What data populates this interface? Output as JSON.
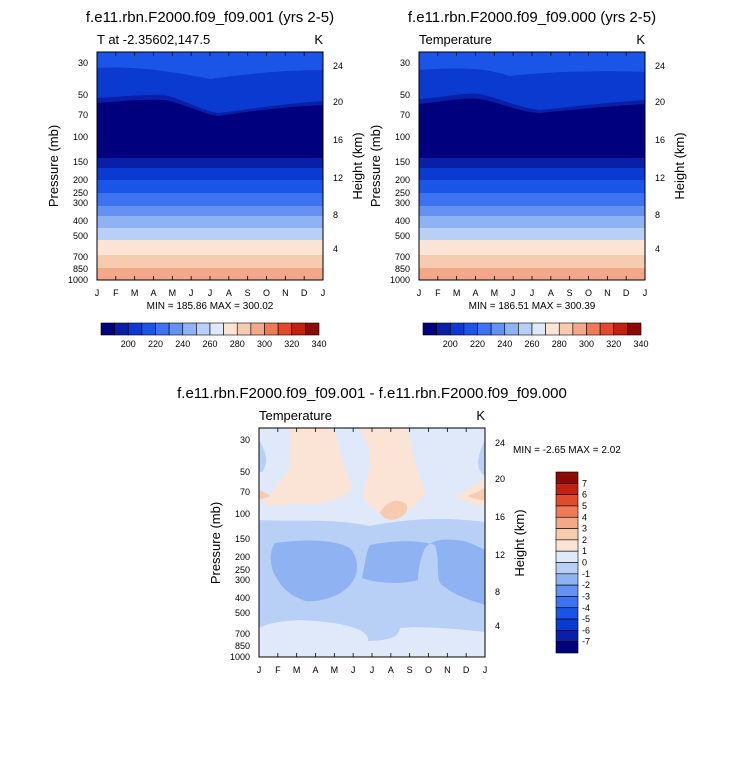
{
  "chart_data": [
    {
      "type": "heatmap",
      "title": "f.e11.rbn.F2000.f09_f09.001 (yrs 2-5)",
      "subtitle_left": "T at -2.35602,147.5",
      "subtitle_right": "K",
      "ylabel": "Pressure (mb)",
      "y2label": "Height (km)",
      "x_ticks": [
        "J",
        "F",
        "M",
        "A",
        "M",
        "J",
        "J",
        "A",
        "S",
        "O",
        "N",
        "D",
        "J"
      ],
      "y_ticks": [
        "30",
        "50",
        "70",
        "100",
        "150",
        "200",
        "250",
        "300",
        "400",
        "500",
        "700",
        "850",
        "1000"
      ],
      "y2_ticks": [
        "24",
        "20",
        "16",
        "12",
        "8",
        "4"
      ],
      "ylim": [
        1000,
        20
      ],
      "stats": "MIN = 185.86 MAX = 300.02",
      "colorbar_labels": [
        "200",
        "220",
        "240",
        "260",
        "280",
        "300",
        "320",
        "340"
      ],
      "colorbar_orientation": "horizontal"
    },
    {
      "type": "heatmap",
      "title": "f.e11.rbn.F2000.f09_f09.000 (yrs 2-5)",
      "subtitle_left": "Temperature",
      "subtitle_right": "K",
      "ylabel": "Pressure (mb)",
      "y2label": "Height (km)",
      "x_ticks": [
        "J",
        "F",
        "M",
        "A",
        "M",
        "J",
        "J",
        "A",
        "S",
        "O",
        "N",
        "D",
        "J"
      ],
      "y_ticks": [
        "30",
        "50",
        "70",
        "100",
        "150",
        "200",
        "250",
        "300",
        "400",
        "500",
        "700",
        "850",
        "1000"
      ],
      "y2_ticks": [
        "24",
        "20",
        "16",
        "12",
        "8",
        "4"
      ],
      "ylim": [
        1000,
        20
      ],
      "stats": "MIN = 186.51 MAX = 300.39",
      "colorbar_labels": [
        "200",
        "220",
        "240",
        "260",
        "280",
        "300",
        "320",
        "340"
      ],
      "colorbar_orientation": "horizontal"
    },
    {
      "type": "heatmap",
      "title": "f.e11.rbn.F2000.f09_f09.001 - f.e11.rbn.F2000.f09_f09.000",
      "subtitle_left": "Temperature",
      "subtitle_right": "K",
      "ylabel": "Pressure (mb)",
      "y2label": "Height (km)",
      "x_ticks": [
        "J",
        "F",
        "M",
        "A",
        "M",
        "J",
        "J",
        "A",
        "S",
        "O",
        "N",
        "D",
        "J"
      ],
      "y_ticks": [
        "30",
        "50",
        "70",
        "100",
        "150",
        "200",
        "250",
        "300",
        "400",
        "500",
        "700",
        "850",
        "1000"
      ],
      "y2_ticks": [
        "24",
        "20",
        "16",
        "12",
        "8",
        "4"
      ],
      "ylim": [
        1000,
        20
      ],
      "stats": "MIN =  -2.65 MAX =   2.02",
      "colorbar_labels": [
        "7",
        "6",
        "5",
        "4",
        "3",
        "2",
        "1",
        "0",
        "-1",
        "-2",
        "-3",
        "-4",
        "-5",
        "-6",
        "-7"
      ],
      "colorbar_orientation": "vertical"
    }
  ],
  "palette_abs": [
    "#00007f",
    "#0a1fa8",
    "#0a3ad0",
    "#1a55e8",
    "#3d72f0",
    "#6592f0",
    "#8fb2f2",
    "#b8cff6",
    "#dfe9fa",
    "#fbe4d5",
    "#f7cbb0",
    "#f4a88a",
    "#ef7a57",
    "#e24a2c",
    "#c0220f",
    "#8a0a05"
  ],
  "palette_diff": [
    "#00007f",
    "#0a1fa8",
    "#0a3ad0",
    "#1a55e8",
    "#3d72f0",
    "#6592f0",
    "#8fb2f2",
    "#b8cff6",
    "#dfe9fa",
    "#fbe4d5",
    "#f7cbb0",
    "#f4a88a",
    "#ef7a57",
    "#e24a2c",
    "#c0220f",
    "#8a0a05"
  ]
}
